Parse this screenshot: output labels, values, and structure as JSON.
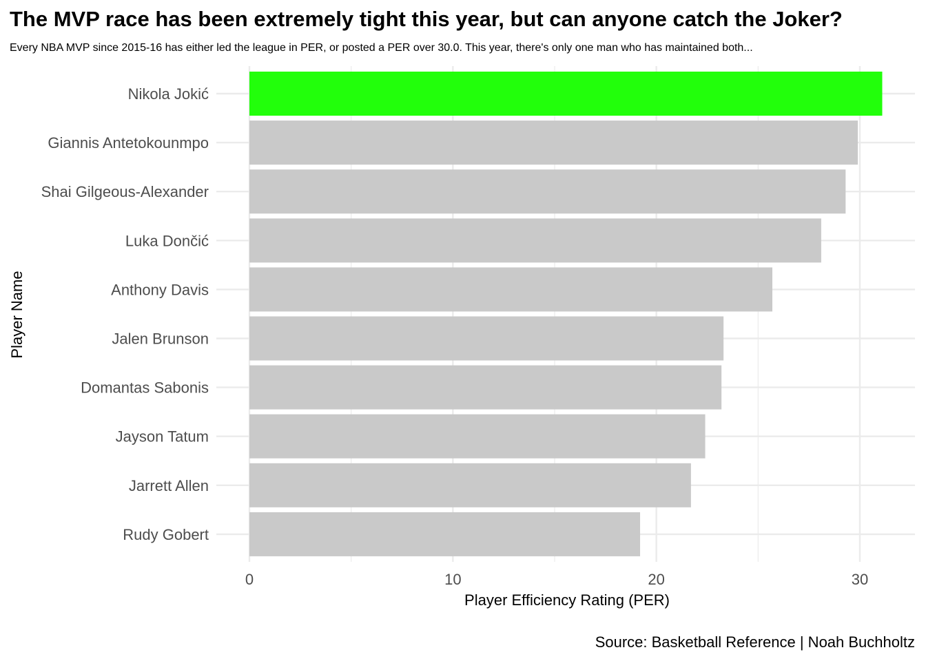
{
  "chart_data": {
    "type": "bar",
    "orientation": "horizontal",
    "title": "The MVP race has been extremely tight this year, but can anyone catch the Joker?",
    "subtitle": "Every NBA MVP since 2015-16 has either led the league in PER, or posted a PER over 30.0. This year, there's only one man who has maintained both...",
    "caption": "Source: Basketball Reference | Noah Buchholtz",
    "xlabel": "Player Efficiency Rating (PER)",
    "ylabel": "Player Name",
    "xlim": [
      0,
      32.6
    ],
    "xticks": [
      0,
      10,
      20,
      30
    ],
    "grid": true,
    "categories": [
      "Nikola Jokić",
      "Giannis Antetokounmpo",
      "Shai Gilgeous-Alexander",
      "Luka Dončić",
      "Anthony Davis",
      "Jalen Brunson",
      "Domantas Sabonis",
      "Jayson Tatum",
      "Jarrett Allen",
      "Rudy Gobert"
    ],
    "values": [
      31.1,
      29.9,
      29.3,
      28.1,
      25.7,
      23.3,
      23.2,
      22.4,
      21.7,
      19.2
    ],
    "highlight": "Nikola Jokić",
    "colors": {
      "highlight": "#22ff0b",
      "default": "#c9c9c9",
      "grid": "#ebebeb"
    }
  }
}
